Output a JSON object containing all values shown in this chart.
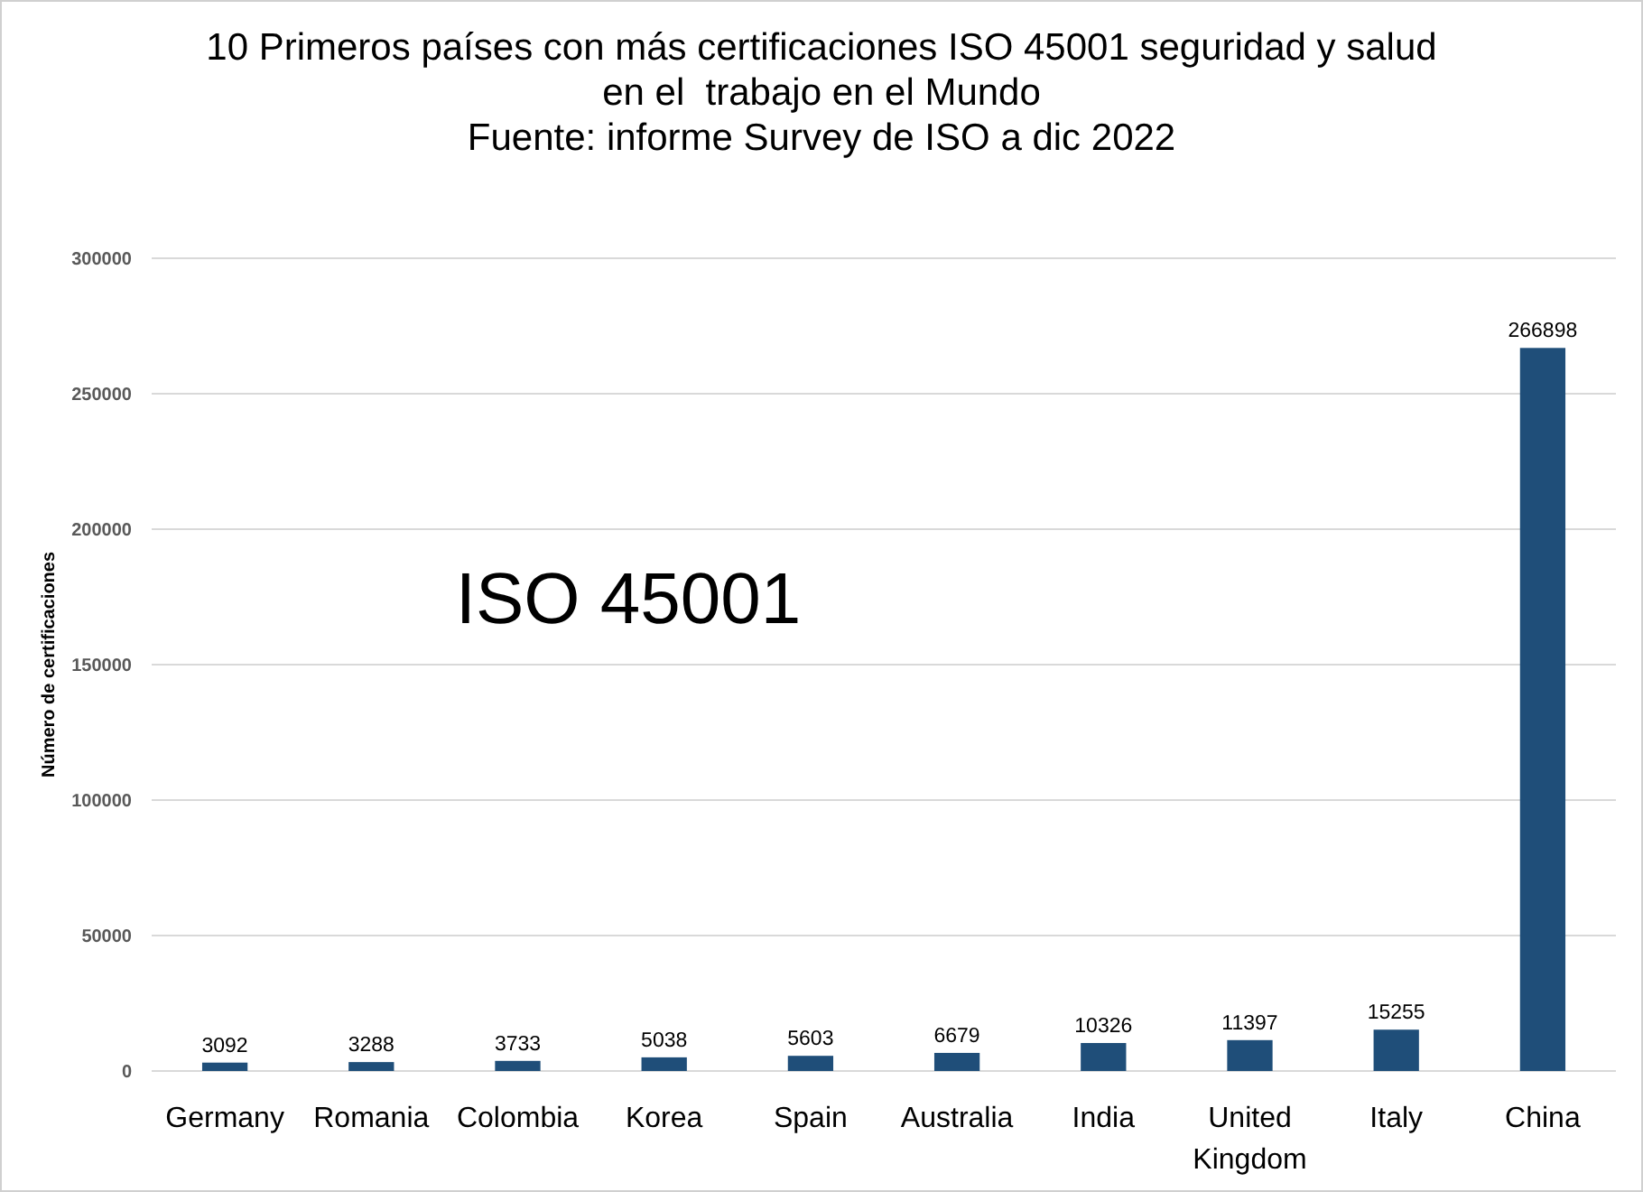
{
  "chart_data": {
    "type": "bar",
    "title": "10 Primeros países con más certificaciones ISO 45001 seguridad y salud\nen el  trabajo en el Mundo",
    "subtitle": "Fuente: informe Survey de ISO a dic 2022",
    "ylabel": "Número de certificaciones",
    "annotations": [
      "ISO 45001"
    ],
    "categories": [
      "Germany",
      "Romania",
      "Colombia",
      "Korea",
      "Spain",
      "Australia",
      "India",
      "United Kingdom",
      "Italy",
      "China"
    ],
    "values": [
      3092,
      3288,
      3733,
      5038,
      5603,
      6679,
      10326,
      11397,
      15255,
      266898
    ],
    "color": "#1f4e79",
    "ylim": [
      0,
      300000
    ],
    "yticks": [
      0,
      50000,
      100000,
      150000,
      200000,
      250000,
      300000
    ],
    "grid": "y",
    "data_labels": true
  }
}
